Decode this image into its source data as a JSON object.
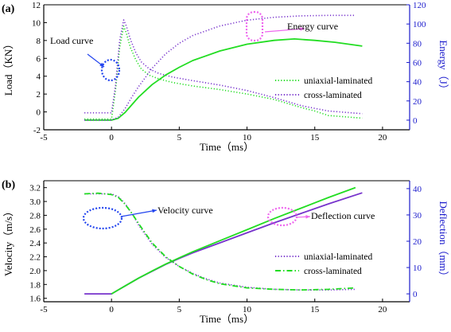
{
  "chart_data": [
    {
      "type": "line",
      "panel_label": "(a)",
      "xlabel": "Time（ms）",
      "ylabel": "Load（KN）",
      "y2label": "Energy（J）",
      "xlim": [
        -5,
        22
      ],
      "ylim": [
        -2,
        12
      ],
      "y2lim": [
        -10,
        120
      ],
      "xticks": [
        -5,
        0,
        5,
        10,
        15,
        20
      ],
      "yticks": [
        -2,
        0,
        2,
        4,
        6,
        8,
        10,
        12
      ],
      "y2ticks": [
        0,
        20,
        40,
        60,
        80,
        100,
        120
      ],
      "legend": [
        "uniaxial-laminated",
        "cross-laminated"
      ],
      "legend_position": "right",
      "annotations": {
        "load_curve": "Load curve",
        "energy_curve": "Energy curve"
      },
      "series": [
        {
          "name": "uniaxial-laminated",
          "axis": "left",
          "role": "load",
          "color": "#22dd22",
          "style": "dotted",
          "x": [
            -2,
            0,
            0.3,
            0.6,
            0.9,
            1.1,
            1.4,
            1.8,
            2.2,
            2.8,
            3.5,
            4.5,
            6,
            8,
            10,
            12,
            14,
            15,
            16,
            18.5
          ],
          "y": [
            -0.8,
            -0.8,
            2.5,
            7.2,
            9.6,
            8.8,
            7.2,
            5.8,
            4.8,
            4.1,
            3.7,
            3.3,
            2.9,
            2.5,
            2.0,
            1.4,
            0.5,
            0.1,
            -0.4,
            -0.7
          ]
        },
        {
          "name": "cross-laminated",
          "axis": "left",
          "role": "load",
          "color": "#7733cc",
          "style": "dotted",
          "x": [
            -2,
            0,
            0.3,
            0.6,
            0.9,
            1.1,
            1.4,
            1.8,
            2.2,
            2.8,
            3.5,
            4.5,
            6,
            8,
            10,
            12,
            14,
            15,
            16,
            18.5
          ],
          "y": [
            -0.1,
            -0.1,
            3.0,
            8.0,
            10.3,
            9.6,
            8.1,
            6.6,
            5.6,
            4.8,
            4.3,
            3.9,
            3.5,
            3.0,
            2.4,
            1.6,
            0.7,
            0.4,
            0.1,
            -0.2
          ]
        },
        {
          "name": "uniaxial-laminated",
          "axis": "right",
          "role": "energy",
          "color": "#22dd22",
          "style": "solid",
          "x": [
            -2,
            0,
            0.5,
            1,
            1.5,
            2,
            3,
            4,
            5,
            6,
            8,
            10,
            12,
            13.5,
            15,
            16.5,
            18.5
          ],
          "y": [
            0,
            0,
            2,
            8,
            16,
            24,
            37,
            47,
            55,
            62,
            72,
            79,
            83,
            84.5,
            83,
            81,
            77
          ]
        },
        {
          "name": "cross-laminated",
          "axis": "right",
          "role": "energy",
          "color": "#7733cc",
          "style": "dotted",
          "x": [
            -2,
            0,
            0.5,
            1,
            1.5,
            2,
            3,
            4,
            5,
            6,
            8,
            10,
            12,
            14,
            16,
            18
          ],
          "y": [
            0,
            0,
            3,
            12,
            24,
            35,
            54,
            69,
            80,
            88,
            98,
            104,
            107,
            108.5,
            109,
            109
          ]
        }
      ]
    },
    {
      "type": "line",
      "panel_label": "(b)",
      "xlabel": "Time（ms）",
      "ylabel": "Velocity（m/s）",
      "y2label": "Deflection（mm）",
      "xlim": [
        -5,
        22
      ],
      "ylim": [
        1.55,
        3.3
      ],
      "y2lim": [
        -3,
        43
      ],
      "xticks": [
        -5,
        0,
        5,
        10,
        15,
        20
      ],
      "yticks": [
        1.6,
        1.8,
        2.0,
        2.2,
        2.4,
        2.6,
        2.8,
        3.0,
        3.2
      ],
      "y2ticks": [
        0,
        10,
        20,
        30,
        40
      ],
      "legend": [
        "uniaxial-laminated",
        "cross-laminated"
      ],
      "legend_position": "bottom-right",
      "annotations": {
        "velocity_curve": "Velocity curve",
        "deflection_curve": "Deflection curve"
      },
      "series": [
        {
          "name": "uniaxial-laminated",
          "axis": "left",
          "role": "velocity",
          "color": "#7733cc",
          "style": "dotted",
          "x": [
            -2,
            0,
            0.5,
            1,
            1.5,
            2,
            3,
            4,
            5,
            6,
            7,
            8,
            10,
            12,
            14,
            16,
            18
          ],
          "y": [
            3.11,
            3.11,
            3.07,
            2.97,
            2.83,
            2.66,
            2.38,
            2.19,
            2.06,
            1.96,
            1.88,
            1.82,
            1.76,
            1.73,
            1.72,
            1.72,
            1.73
          ]
        },
        {
          "name": "cross-laminated",
          "axis": "left",
          "role": "velocity",
          "color": "#22dd22",
          "style": "dashdot",
          "x": [
            -2,
            -1,
            0,
            0.5,
            1,
            1.5,
            2,
            3,
            4,
            5,
            6,
            7,
            8,
            10,
            12,
            14,
            16,
            18
          ],
          "y": [
            3.11,
            3.12,
            3.1,
            3.06,
            2.96,
            2.83,
            2.68,
            2.4,
            2.2,
            2.06,
            1.95,
            1.87,
            1.81,
            1.75,
            1.73,
            1.72,
            1.73,
            1.75
          ]
        },
        {
          "name": "uniaxial-laminated",
          "axis": "right",
          "role": "deflection",
          "color": "#7733cc",
          "style": "solid",
          "x": [
            -2,
            0,
            0.5,
            1,
            2,
            3,
            4,
            5,
            6,
            8,
            10,
            12,
            14,
            16,
            18.5
          ],
          "y": [
            0,
            0,
            1.5,
            3,
            6,
            8.6,
            11.2,
            13.5,
            15.6,
            19.4,
            23.2,
            27,
            30.6,
            34.2,
            38.4
          ]
        },
        {
          "name": "cross-laminated",
          "axis": "right",
          "role": "deflection",
          "color": "#22dd22",
          "style": "solid",
          "x": [
            0,
            0.5,
            1,
            2,
            3,
            4,
            5,
            6,
            8,
            10,
            12,
            14,
            16,
            18
          ],
          "y": [
            0,
            1.5,
            3,
            6,
            8.7,
            11.3,
            13.7,
            16,
            20.2,
            24.4,
            28.6,
            32.6,
            36.6,
            40.4
          ]
        }
      ]
    }
  ]
}
